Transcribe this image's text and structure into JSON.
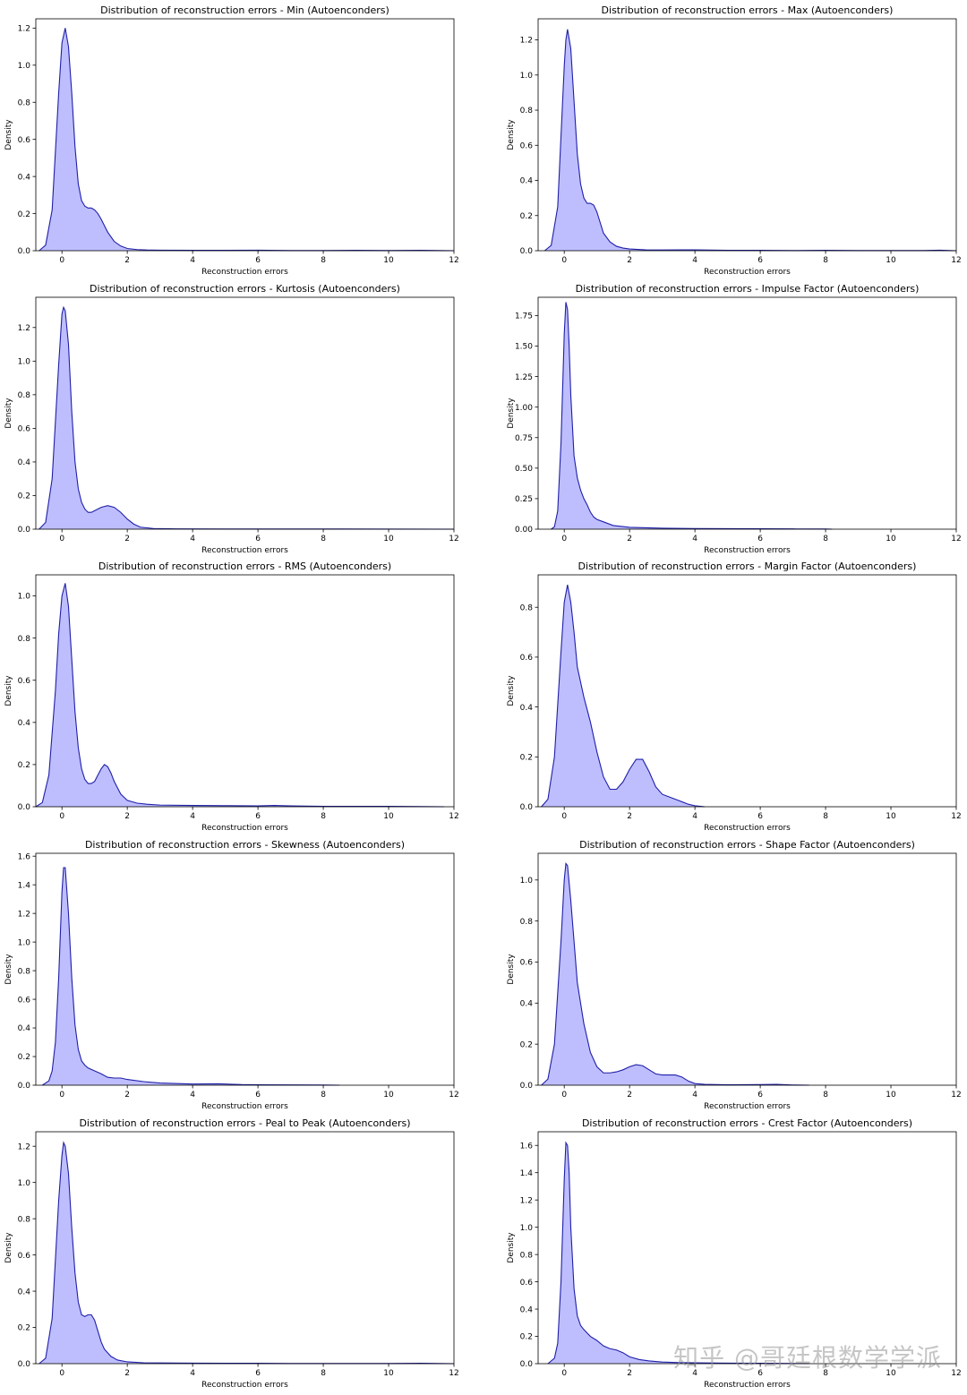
{
  "watermark": "知乎 @哥廷根数学学派",
  "colors": {
    "fill": "#bbbbff",
    "line": "#1f1fa8",
    "axis": "#000000"
  },
  "chart_data": [
    {
      "type": "area",
      "title": "Distribution of reconstruction errors - Min (Autoenconders)",
      "xlabel": "Reconstruction errors",
      "ylabel": "Density",
      "xlim": [
        -0.8,
        12
      ],
      "ylim": [
        0,
        1.25
      ],
      "xticks": [
        0,
        2,
        4,
        6,
        8,
        10,
        12
      ],
      "xtick_labels": [
        "0",
        "2",
        "4",
        "6",
        "8",
        "10",
        "12"
      ],
      "yticks": [
        0,
        0.2,
        0.4,
        0.6,
        0.8,
        1.0,
        1.2
      ],
      "ytick_labels": [
        "0.0",
        "0.2",
        "0.4",
        "0.6",
        "0.8",
        "1.0",
        "1.2"
      ],
      "x": [
        -0.7,
        -0.5,
        -0.3,
        -0.1,
        0,
        0.1,
        0.2,
        0.3,
        0.4,
        0.5,
        0.6,
        0.7,
        0.8,
        0.9,
        1.0,
        1.1,
        1.2,
        1.4,
        1.6,
        1.8,
        2.0,
        2.3,
        2.6,
        3.0,
        4,
        5,
        6,
        7,
        8,
        9,
        10,
        11,
        11.5,
        12
      ],
      "y": [
        0,
        0.03,
        0.22,
        0.85,
        1.12,
        1.2,
        1.1,
        0.85,
        0.56,
        0.36,
        0.27,
        0.24,
        0.23,
        0.23,
        0.22,
        0.2,
        0.17,
        0.1,
        0.05,
        0.025,
        0.012,
        0.006,
        0.004,
        0.003,
        0.002,
        0.002,
        0.003,
        0.001,
        0.001,
        0.002,
        0.001,
        0.002,
        0.001,
        0
      ]
    },
    {
      "type": "area",
      "title": "Distribution of reconstruction errors - Max (Autoenconders)",
      "xlabel": "Reconstruction errors",
      "ylabel": "Density",
      "xlim": [
        -0.8,
        12
      ],
      "ylim": [
        0,
        1.32
      ],
      "xticks": [
        0,
        2,
        4,
        6,
        8,
        10,
        12
      ],
      "xtick_labels": [
        "0",
        "2",
        "4",
        "6",
        "8",
        "10",
        "12"
      ],
      "yticks": [
        0,
        0.2,
        0.4,
        0.6,
        0.8,
        1.0,
        1.2
      ],
      "ytick_labels": [
        "0.0",
        "0.2",
        "0.4",
        "0.6",
        "0.8",
        "1.0",
        "1.2"
      ],
      "x": [
        -0.6,
        -0.4,
        -0.2,
        0,
        0.05,
        0.1,
        0.2,
        0.3,
        0.4,
        0.5,
        0.6,
        0.7,
        0.8,
        0.9,
        1.0,
        1.1,
        1.2,
        1.4,
        1.6,
        1.8,
        2.0,
        2.5,
        3,
        4,
        5,
        6,
        7,
        8,
        9,
        10,
        11,
        11.5,
        12
      ],
      "y": [
        0,
        0.03,
        0.25,
        1.05,
        1.2,
        1.26,
        1.15,
        0.85,
        0.55,
        0.38,
        0.3,
        0.27,
        0.27,
        0.26,
        0.22,
        0.16,
        0.1,
        0.05,
        0.025,
        0.015,
        0.01,
        0.005,
        0.004,
        0.005,
        0.002,
        0.002,
        0.001,
        0.002,
        0.001,
        0.001,
        0.001,
        0.003,
        0
      ]
    },
    {
      "type": "area",
      "title": "Distribution of reconstruction errors - Kurtosis (Autoenconders)",
      "xlabel": "Reconstruction errors",
      "ylabel": "Density",
      "xlim": [
        -0.8,
        12
      ],
      "ylim": [
        0,
        1.38
      ],
      "xticks": [
        0,
        2,
        4,
        6,
        8,
        10,
        12
      ],
      "xtick_labels": [
        "0",
        "2",
        "4",
        "6",
        "8",
        "10",
        "12"
      ],
      "yticks": [
        0,
        0.2,
        0.4,
        0.6,
        0.8,
        1.0,
        1.2
      ],
      "ytick_labels": [
        "0.0",
        "0.2",
        "0.4",
        "0.6",
        "0.8",
        "1.0",
        "1.2"
      ],
      "x": [
        -0.7,
        -0.5,
        -0.3,
        -0.1,
        0,
        0.05,
        0.1,
        0.2,
        0.3,
        0.4,
        0.5,
        0.6,
        0.7,
        0.8,
        0.9,
        1.0,
        1.2,
        1.4,
        1.6,
        1.8,
        2.0,
        2.2,
        2.4,
        2.8,
        3.5,
        5,
        8,
        12
      ],
      "y": [
        0,
        0.04,
        0.3,
        0.98,
        1.28,
        1.32,
        1.3,
        1.1,
        0.7,
        0.4,
        0.24,
        0.16,
        0.12,
        0.1,
        0.1,
        0.11,
        0.13,
        0.14,
        0.13,
        0.1,
        0.06,
        0.03,
        0.012,
        0.004,
        0.002,
        0.001,
        0.001,
        0
      ]
    },
    {
      "type": "area",
      "title": "Distribution of reconstruction errors - Impulse Factor (Autoenconders)",
      "xlabel": "Reconstruction errors",
      "ylabel": "Density",
      "xlim": [
        -0.8,
        12
      ],
      "ylim": [
        0,
        1.9
      ],
      "xticks": [
        0,
        2,
        4,
        6,
        8,
        10,
        12
      ],
      "xtick_labels": [
        "0",
        "2",
        "4",
        "6",
        "8",
        "10",
        "12"
      ],
      "yticks": [
        0,
        0.25,
        0.5,
        0.75,
        1.0,
        1.25,
        1.5,
        1.75
      ],
      "ytick_labels": [
        "0.00",
        "0.25",
        "0.50",
        "0.75",
        "1.00",
        "1.25",
        "1.50",
        "1.75"
      ],
      "x": [
        -0.4,
        -0.3,
        -0.2,
        -0.1,
        0,
        0.05,
        0.1,
        0.15,
        0.2,
        0.3,
        0.4,
        0.5,
        0.6,
        0.7,
        0.8,
        0.9,
        1.0,
        1.2,
        1.5,
        2,
        3,
        4,
        5,
        6,
        7,
        8,
        8.2
      ],
      "y": [
        0,
        0.02,
        0.15,
        0.7,
        1.6,
        1.86,
        1.8,
        1.5,
        1.1,
        0.6,
        0.42,
        0.32,
        0.25,
        0.2,
        0.14,
        0.1,
        0.08,
        0.06,
        0.03,
        0.015,
        0.008,
        0.005,
        0.004,
        0.003,
        0.002,
        0.001,
        0
      ]
    },
    {
      "type": "area",
      "title": "Distribution of reconstruction errors - RMS (Autoenconders)",
      "xlabel": "Reconstruction errors",
      "ylabel": "Density",
      "xlim": [
        -0.8,
        12
      ],
      "ylim": [
        0,
        1.1
      ],
      "xticks": [
        0,
        2,
        4,
        6,
        8,
        10,
        12
      ],
      "xtick_labels": [
        "0",
        "2",
        "4",
        "6",
        "8",
        "10",
        "12"
      ],
      "yticks": [
        0,
        0.2,
        0.4,
        0.6,
        0.8,
        1.0
      ],
      "ytick_labels": [
        "0.0",
        "0.2",
        "0.4",
        "0.6",
        "0.8",
        "1.0"
      ],
      "x": [
        -0.8,
        -0.6,
        -0.4,
        -0.2,
        -0.1,
        0,
        0.1,
        0.2,
        0.3,
        0.4,
        0.5,
        0.6,
        0.7,
        0.8,
        0.9,
        1.0,
        1.1,
        1.2,
        1.3,
        1.4,
        1.5,
        1.6,
        1.8,
        2.0,
        2.3,
        2.6,
        3,
        4,
        5,
        6,
        6.5,
        7,
        8,
        9,
        10,
        11,
        11.7
      ],
      "y": [
        0,
        0.02,
        0.15,
        0.55,
        0.82,
        1.0,
        1.06,
        0.95,
        0.7,
        0.45,
        0.28,
        0.18,
        0.13,
        0.11,
        0.11,
        0.12,
        0.15,
        0.18,
        0.2,
        0.19,
        0.16,
        0.12,
        0.06,
        0.03,
        0.017,
        0.012,
        0.008,
        0.006,
        0.005,
        0.004,
        0.006,
        0.004,
        0.002,
        0.002,
        0.002,
        0.001,
        0
      ]
    },
    {
      "type": "area",
      "title": "Distribution of reconstruction errors - Margin Factor (Autoenconders)",
      "xlabel": "Reconstruction errors",
      "ylabel": "Density",
      "xlim": [
        -0.8,
        12
      ],
      "ylim": [
        0,
        0.93
      ],
      "xticks": [
        0,
        2,
        4,
        6,
        8,
        10,
        12
      ],
      "xtick_labels": [
        "0",
        "2",
        "4",
        "6",
        "8",
        "10",
        "12"
      ],
      "yticks": [
        0,
        0.2,
        0.4,
        0.6,
        0.8
      ],
      "ytick_labels": [
        "0.0",
        "0.2",
        "0.4",
        "0.6",
        "0.8"
      ],
      "x": [
        -0.7,
        -0.5,
        -0.3,
        -0.1,
        0,
        0.1,
        0.2,
        0.3,
        0.4,
        0.6,
        0.8,
        1.0,
        1.2,
        1.4,
        1.6,
        1.8,
        2.0,
        2.2,
        2.4,
        2.6,
        2.8,
        3.0,
        3.2,
        3.5,
        3.8,
        4.0,
        4.3
      ],
      "y": [
        0,
        0.03,
        0.2,
        0.62,
        0.82,
        0.89,
        0.82,
        0.7,
        0.56,
        0.44,
        0.34,
        0.22,
        0.12,
        0.07,
        0.07,
        0.1,
        0.15,
        0.19,
        0.19,
        0.14,
        0.08,
        0.05,
        0.04,
        0.025,
        0.01,
        0.004,
        0
      ]
    },
    {
      "type": "area",
      "title": "Distribution of reconstruction errors - Skewness (Autoenconders)",
      "xlabel": "Reconstruction errors",
      "ylabel": "Density",
      "xlim": [
        -0.8,
        12
      ],
      "ylim": [
        0,
        1.62
      ],
      "xticks": [
        0,
        2,
        4,
        6,
        8,
        10,
        12
      ],
      "xtick_labels": [
        "0",
        "2",
        "4",
        "6",
        "8",
        "10",
        "12"
      ],
      "yticks": [
        0,
        0.2,
        0.4,
        0.6,
        0.8,
        1.0,
        1.2,
        1.4,
        1.6
      ],
      "ytick_labels": [
        "0.0",
        "0.2",
        "0.4",
        "0.6",
        "0.8",
        "1.0",
        "1.2",
        "1.4",
        "1.6"
      ],
      "x": [
        -0.6,
        -0.4,
        -0.3,
        -0.2,
        -0.1,
        0,
        0.05,
        0.1,
        0.2,
        0.3,
        0.4,
        0.5,
        0.6,
        0.7,
        0.8,
        1.0,
        1.2,
        1.4,
        1.6,
        1.8,
        2.0,
        2.5,
        3,
        4,
        4.8,
        5.5,
        6,
        7,
        8,
        8.5
      ],
      "y": [
        0,
        0.03,
        0.1,
        0.3,
        0.75,
        1.35,
        1.52,
        1.52,
        1.2,
        0.75,
        0.42,
        0.25,
        0.17,
        0.14,
        0.12,
        0.1,
        0.08,
        0.055,
        0.05,
        0.05,
        0.04,
        0.025,
        0.015,
        0.008,
        0.01,
        0.004,
        0.003,
        0.002,
        0.001,
        0
      ]
    },
    {
      "type": "area",
      "title": "Distribution of reconstruction errors - Shape Factor (Autoenconders)",
      "xlabel": "Reconstruction errors",
      "ylabel": "Density",
      "xlim": [
        -0.8,
        12
      ],
      "ylim": [
        0,
        1.13
      ],
      "xticks": [
        0,
        2,
        4,
        6,
        8,
        10,
        12
      ],
      "xtick_labels": [
        "0",
        "2",
        "4",
        "6",
        "8",
        "10",
        "12"
      ],
      "yticks": [
        0,
        0.2,
        0.4,
        0.6,
        0.8,
        1.0
      ],
      "ytick_labels": [
        "0.0",
        "0.2",
        "0.4",
        "0.6",
        "0.8",
        "1.0"
      ],
      "x": [
        -0.7,
        -0.5,
        -0.3,
        -0.1,
        0,
        0.05,
        0.1,
        0.2,
        0.3,
        0.4,
        0.6,
        0.8,
        1.0,
        1.2,
        1.4,
        1.6,
        1.8,
        2.0,
        2.2,
        2.4,
        2.6,
        2.8,
        3.0,
        3.2,
        3.4,
        3.6,
        3.8,
        4.0,
        4.3,
        5,
        6,
        6.5,
        7,
        7.5
      ],
      "y": [
        0,
        0.03,
        0.2,
        0.7,
        1.0,
        1.08,
        1.07,
        0.9,
        0.7,
        0.5,
        0.3,
        0.16,
        0.09,
        0.06,
        0.06,
        0.065,
        0.075,
        0.09,
        0.1,
        0.095,
        0.075,
        0.055,
        0.05,
        0.05,
        0.05,
        0.04,
        0.02,
        0.008,
        0.004,
        0.002,
        0.003,
        0.004,
        0.001,
        0
      ]
    },
    {
      "type": "area",
      "title": "Distribution of reconstruction errors - Peal to Peak (Autoenconders)",
      "xlabel": "Reconstruction errors",
      "ylabel": "Density",
      "xlim": [
        -0.8,
        12
      ],
      "ylim": [
        0,
        1.28
      ],
      "xticks": [
        0,
        2,
        4,
        6,
        8,
        10,
        12
      ],
      "xtick_labels": [
        "0",
        "2",
        "4",
        "6",
        "8",
        "10",
        "12"
      ],
      "yticks": [
        0,
        0.2,
        0.4,
        0.6,
        0.8,
        1.0,
        1.2
      ],
      "ytick_labels": [
        "0.0",
        "0.2",
        "0.4",
        "0.6",
        "0.8",
        "1.0",
        "1.2"
      ],
      "x": [
        -0.7,
        -0.5,
        -0.3,
        -0.1,
        0,
        0.05,
        0.1,
        0.2,
        0.3,
        0.4,
        0.5,
        0.6,
        0.7,
        0.8,
        0.9,
        1.0,
        1.1,
        1.2,
        1.3,
        1.5,
        1.7,
        2.0,
        2.5,
        3,
        4,
        5,
        6,
        7,
        8,
        9,
        10,
        11,
        11.5,
        12
      ],
      "y": [
        0,
        0.03,
        0.25,
        0.9,
        1.15,
        1.22,
        1.2,
        1.05,
        0.75,
        0.5,
        0.34,
        0.27,
        0.26,
        0.27,
        0.27,
        0.24,
        0.18,
        0.12,
        0.08,
        0.04,
        0.02,
        0.01,
        0.005,
        0.004,
        0.003,
        0.002,
        0.002,
        0.001,
        0.001,
        0.001,
        0.001,
        0.002,
        0.001,
        0
      ]
    },
    {
      "type": "area",
      "title": "Distribution of reconstruction errors - Crest Factor (Autoenconders)",
      "xlabel": "Reconstruction errors",
      "ylabel": "Density",
      "xlim": [
        -0.8,
        12
      ],
      "ylim": [
        0,
        1.7
      ],
      "xticks": [
        0,
        2,
        4,
        6,
        8,
        10,
        12
      ],
      "xtick_labels": [
        "0",
        "2",
        "4",
        "6",
        "8",
        "10",
        "12"
      ],
      "yticks": [
        0,
        0.2,
        0.4,
        0.6,
        0.8,
        1.0,
        1.2,
        1.4,
        1.6
      ],
      "ytick_labels": [
        "0.0",
        "0.2",
        "0.4",
        "0.6",
        "0.8",
        "1.0",
        "1.2",
        "1.4",
        "1.6"
      ],
      "x": [
        -0.5,
        -0.3,
        -0.2,
        -0.1,
        0,
        0.05,
        0.1,
        0.15,
        0.2,
        0.3,
        0.4,
        0.5,
        0.6,
        0.8,
        1.0,
        1.2,
        1.4,
        1.6,
        1.8,
        2.0,
        2.3,
        2.6,
        3,
        3.5,
        4,
        5,
        6,
        7,
        7.5
      ],
      "y": [
        0,
        0.04,
        0.15,
        0.6,
        1.35,
        1.62,
        1.6,
        1.4,
        1.0,
        0.55,
        0.35,
        0.28,
        0.25,
        0.2,
        0.17,
        0.13,
        0.11,
        0.1,
        0.08,
        0.05,
        0.03,
        0.02,
        0.012,
        0.008,
        0.006,
        0.004,
        0.003,
        0.001,
        0
      ]
    }
  ]
}
